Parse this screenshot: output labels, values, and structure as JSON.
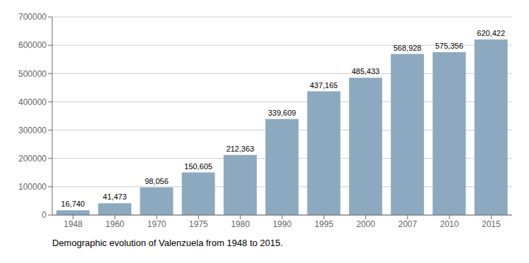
{
  "chart_data": {
    "type": "bar",
    "title": "Demographic evolution of Valenzuela from 1948 to 2015.",
    "categories": [
      "1948",
      "1960",
      "1970",
      "1975",
      "1980",
      "1990",
      "1995",
      "2000",
      "2007",
      "2010",
      "2015"
    ],
    "values": [
      16740,
      41473,
      98056,
      150605,
      212363,
      339609,
      437165,
      485433,
      568928,
      575356,
      620422
    ],
    "value_labels": [
      "16,740",
      "41,473",
      "98,056",
      "150,605",
      "212,363",
      "339,609",
      "437,165",
      "485,433",
      "568,928",
      "575,356",
      "620,422"
    ],
    "data_labels": true,
    "color": "#8da9c0",
    "ylim": [
      0,
      700000
    ],
    "yticks": [
      0,
      100000,
      200000,
      300000,
      400000,
      500000,
      600000,
      700000
    ],
    "grid": true
  }
}
